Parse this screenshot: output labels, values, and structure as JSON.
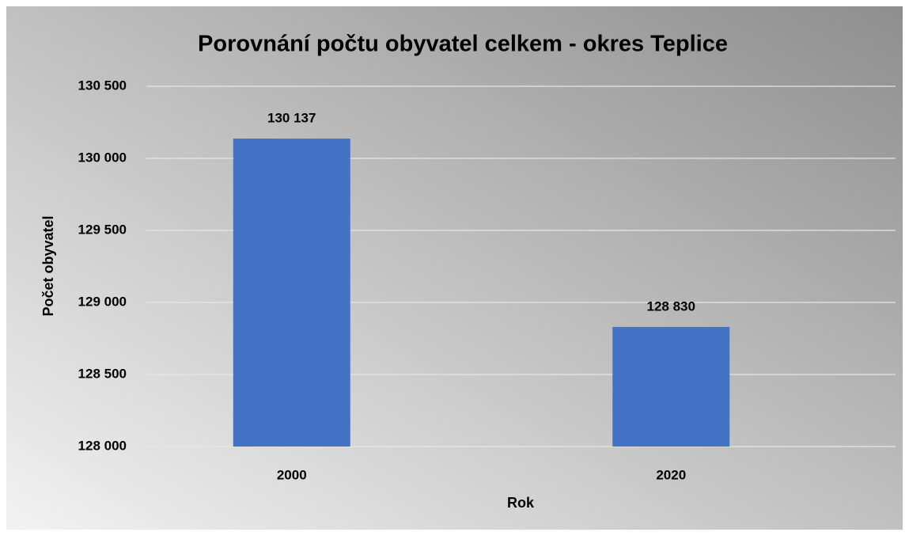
{
  "chart_data": {
    "type": "bar",
    "title": "Porovnání počtu obyvatel celkem - okres Teplice",
    "x_label": "Rok",
    "y_label": "Počet obyvatel",
    "categories": [
      "2000",
      "2020"
    ],
    "values": [
      130137,
      128830
    ],
    "value_labels": [
      "130 137",
      "128 830"
    ],
    "color": "#4472c4",
    "ylim": [
      128000,
      130500
    ],
    "yticks": [
      {
        "value": 128000,
        "label": "128 000"
      },
      {
        "value": 128500,
        "label": "128 500"
      },
      {
        "value": 129000,
        "label": "129 000"
      },
      {
        "value": 129500,
        "label": "129 500"
      },
      {
        "value": 130000,
        "label": "130 000"
      },
      {
        "value": 130500,
        "label": "130 500"
      }
    ],
    "grid": true
  }
}
